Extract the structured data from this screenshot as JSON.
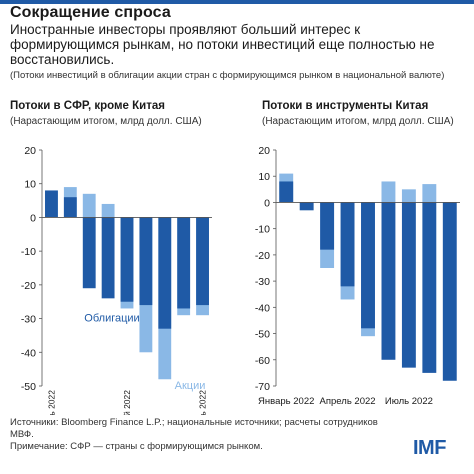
{
  "header": {
    "title": "Сокращение спроса",
    "subtitle": "Иностранные инвесторы проявляют больший интерес к формирующимся рынкам, но потоки инвестиций еще полностью не восстановились.",
    "note": "(Потоки инвестиций в облигации акции стран с формирующимся рынком в национальной валюте)"
  },
  "footer": {
    "sources": "Источники: Bloomberg Finance L.P.; национальные источники; расчеты сотрудников МВФ.",
    "note": "Примечание: СФР — страны с формирующимся рынком.",
    "logo": "IMF"
  },
  "colors": {
    "bonds": "#1f5aa6",
    "stocks": "#8ab8e6",
    "axis": "#555555",
    "text": "#1a1a1a"
  },
  "chart_data": [
    {
      "type": "bar",
      "title": "Потоки в СФР, кроме Китая",
      "subtitle": "(Нарастающим итогом, млрд долл. США)",
      "ylim": [
        -50,
        20
      ],
      "yticks": [
        -50,
        -40,
        -30,
        -20,
        -10,
        0,
        10,
        20
      ],
      "categories": [
        "Январь 2022",
        "Февраль 2022",
        "Март 2022",
        "Апрель 2022",
        "Май 2022",
        "Июнь 2022",
        "Июль 2022",
        "Август 2022",
        "Сентябрь 2022"
      ],
      "tick_labels": [
        "Январь 2022",
        "",
        "",
        "",
        "Май 2022",
        "",
        "",
        "",
        "Сентябрь 2022"
      ],
      "series": [
        {
          "name": "Облигации",
          "values": [
            8,
            6,
            -21,
            -24,
            -25,
            -26,
            -33,
            -27,
            -26
          ]
        },
        {
          "name": "Акции",
          "values": [
            8,
            9,
            7,
            4,
            -27,
            -40,
            -48,
            -29,
            -29
          ]
        }
      ],
      "labels": {
        "bonds": "Облигации",
        "stocks": "Акции"
      }
    },
    {
      "type": "bar",
      "title": "Потоки в инструменты Китая",
      "subtitle": "(Нарастающим итогом, млрд долл. США)",
      "ylim": [
        -70,
        20
      ],
      "yticks": [
        -70,
        -60,
        -50,
        -40,
        -30,
        -20,
        -10,
        0,
        10,
        20
      ],
      "categories": [
        "Январь 2022",
        "Февраль 2022",
        "Март 2022",
        "Апрель 2022",
        "Май 2022",
        "Июнь 2022",
        "Июль 2022",
        "Август 2022",
        "Сентябрь 2022"
      ],
      "tick_labels": [
        "Январь 2022",
        "",
        "",
        "Апрель 2022",
        "",
        "",
        "Июль 2022",
        "",
        ""
      ],
      "series": [
        {
          "name": "Облигации",
          "values": [
            8,
            -3,
            -18,
            -32,
            -48,
            -60,
            -63,
            -65,
            -68
          ]
        },
        {
          "name": "Акции",
          "values": [
            11,
            0,
            -25,
            -37,
            -51,
            8,
            5,
            7,
            0
          ]
        }
      ]
    }
  ]
}
